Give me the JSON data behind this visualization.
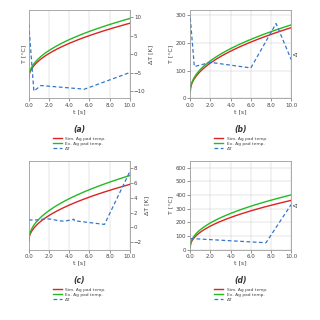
{
  "subplots": [
    {
      "label": "(a)",
      "left_ylabel": "T [°C]",
      "right_ylabel": "ΔT [K]",
      "left_ylim": [
        -60,
        70
      ],
      "right_ylim": [
        -12,
        12
      ],
      "left_yticks_show": false,
      "right_yticks": [
        -10,
        -5,
        0,
        5,
        10
      ],
      "sim_color": "#dd2222",
      "ex_color": "#22bb22",
      "dt_color": "#3377cc"
    },
    {
      "label": "(b)",
      "left_ylabel": "T [°C]",
      "right_ylabel": "Δ",
      "left_ylim": [
        0,
        320
      ],
      "right_ylim": [
        0,
        320
      ],
      "left_yticks_show": true,
      "left_yticks": [
        0,
        100,
        200,
        300
      ],
      "right_yticks": [],
      "sim_color": "#dd2222",
      "ex_color": "#22bb22",
      "dt_color": "#3377cc"
    },
    {
      "label": "(c)",
      "left_ylabel": "",
      "right_ylabel": "ΔT [K]",
      "left_ylim": [
        -50,
        100
      ],
      "right_ylim": [
        -3,
        9
      ],
      "left_yticks_show": false,
      "right_yticks": [
        -2,
        0,
        2,
        4,
        6,
        8
      ],
      "sim_color": "#dd2222",
      "ex_color": "#22bb22",
      "dt_color": "#3377cc"
    },
    {
      "label": "(d)",
      "left_ylabel": "T [°C]",
      "right_ylabel": "Δ",
      "left_ylim": [
        0,
        650
      ],
      "right_ylim": [
        0,
        650
      ],
      "left_yticks_show": true,
      "left_yticks": [
        0,
        100,
        200,
        300,
        400,
        500,
        600
      ],
      "right_yticks": [],
      "sim_color": "#dd2222",
      "ex_color": "#22bb22",
      "dt_color": "#3377cc"
    }
  ],
  "legend_entries": [
    "Sim. Ag pad temp.",
    "Ex. Ag pad temp.",
    "ΔT"
  ],
  "xlabel": "t [s]",
  "xticks": [
    0.0,
    2.0,
    4.0,
    6.0,
    8.0,
    10.0
  ],
  "bg_color": "#ffffff",
  "grid_color": "#cccccc",
  "font_color": "#444444"
}
